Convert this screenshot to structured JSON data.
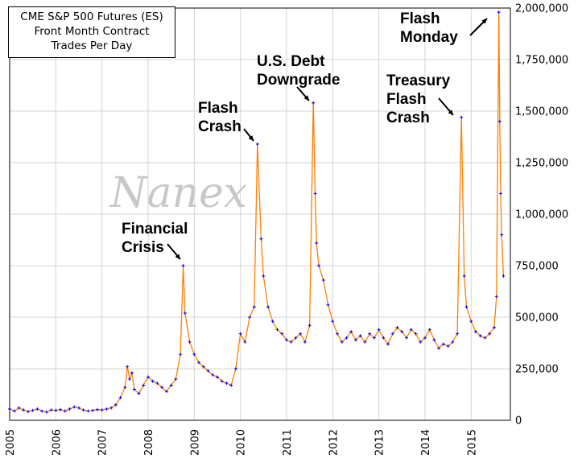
{
  "chart_data": {
    "type": "line",
    "title_lines": [
      "CME S&P 500 Futures (ES)",
      "Front Month Contract",
      "Trades Per Day"
    ],
    "watermark": "Nanex",
    "xlabel": "",
    "ylabel": "",
    "xlim": [
      2005.0,
      2015.85
    ],
    "ylim": [
      0,
      2000000
    ],
    "x_ticks": [
      "2005",
      "2006",
      "2007",
      "2008",
      "2009",
      "2010",
      "2011",
      "2012",
      "2013",
      "2014",
      "2015"
    ],
    "y_ticks": [
      "0",
      "250,000",
      "500,000",
      "750,000",
      "1,000,000",
      "1,250,000",
      "1,500,000",
      "1,750,000",
      "2,000,000"
    ],
    "grid": true,
    "line_color": "#ff7f00",
    "marker_color": "#0000ff",
    "series": [
      {
        "x": [
          2005.0,
          2005.1,
          2005.2,
          2005.3,
          2005.4,
          2005.5,
          2005.6,
          2005.7,
          2005.8,
          2005.9,
          2006.0,
          2006.1,
          2006.2,
          2006.3,
          2006.4,
          2006.5,
          2006.6,
          2006.7,
          2006.8,
          2006.9,
          2007.0,
          2007.1,
          2007.2,
          2007.3,
          2007.4,
          2007.5,
          2007.55,
          2007.6,
          2007.65,
          2007.7,
          2007.8,
          2007.9,
          2008.0,
          2008.1,
          2008.2,
          2008.3,
          2008.4,
          2008.5,
          2008.6,
          2008.7,
          2008.76,
          2008.8,
          2008.9,
          2009.0,
          2009.1,
          2009.2,
          2009.3,
          2009.4,
          2009.5,
          2009.6,
          2009.7,
          2009.8,
          2009.9,
          2010.0,
          2010.1,
          2010.2,
          2010.3,
          2010.37,
          2010.45,
          2010.5,
          2010.6,
          2010.7,
          2010.8,
          2010.9,
          2011.0,
          2011.1,
          2011.2,
          2011.3,
          2011.4,
          2011.5,
          2011.58,
          2011.62,
          2011.65,
          2011.7,
          2011.8,
          2011.9,
          2012.0,
          2012.1,
          2012.2,
          2012.3,
          2012.4,
          2012.5,
          2012.6,
          2012.7,
          2012.8,
          2012.9,
          2013.0,
          2013.1,
          2013.2,
          2013.3,
          2013.4,
          2013.5,
          2013.6,
          2013.7,
          2013.8,
          2013.9,
          2014.0,
          2014.1,
          2014.2,
          2014.3,
          2014.4,
          2014.5,
          2014.6,
          2014.7,
          2014.79,
          2014.85,
          2014.9,
          2015.0,
          2015.1,
          2015.2,
          2015.3,
          2015.4,
          2015.5,
          2015.55,
          2015.6,
          2015.62,
          2015.64,
          2015.66,
          2015.7
        ],
        "values": [
          55000,
          45000,
          60000,
          50000,
          42000,
          48000,
          55000,
          45000,
          40000,
          50000,
          48000,
          52000,
          45000,
          55000,
          65000,
          60000,
          50000,
          45000,
          48000,
          52000,
          50000,
          55000,
          60000,
          75000,
          110000,
          160000,
          260000,
          200000,
          230000,
          150000,
          130000,
          170000,
          210000,
          190000,
          180000,
          160000,
          140000,
          170000,
          200000,
          320000,
          750000,
          520000,
          380000,
          320000,
          280000,
          260000,
          240000,
          220000,
          210000,
          190000,
          180000,
          170000,
          250000,
          420000,
          380000,
          500000,
          550000,
          1340000,
          880000,
          700000,
          550000,
          480000,
          440000,
          420000,
          390000,
          380000,
          400000,
          420000,
          380000,
          460000,
          1540000,
          1100000,
          860000,
          750000,
          680000,
          560000,
          480000,
          420000,
          380000,
          400000,
          430000,
          390000,
          410000,
          380000,
          420000,
          400000,
          440000,
          400000,
          370000,
          420000,
          450000,
          430000,
          400000,
          440000,
          420000,
          380000,
          400000,
          440000,
          390000,
          350000,
          370000,
          360000,
          380000,
          420000,
          1470000,
          700000,
          550000,
          480000,
          430000,
          410000,
          400000,
          420000,
          450000,
          600000,
          1980000,
          1450000,
          1100000,
          900000,
          700000
        ]
      }
    ],
    "annotations": [
      {
        "text_lines": [
          "Financial",
          "Crisis"
        ],
        "x": 2008.76,
        "y": 750000
      },
      {
        "text_lines": [
          "Flash",
          "Crash"
        ],
        "x": 2010.37,
        "y": 1340000
      },
      {
        "text_lines": [
          "U.S. Debt",
          "Downgrade"
        ],
        "x": 2011.58,
        "y": 1540000
      },
      {
        "text_lines": [
          "Treasury",
          "Flash",
          "Crash"
        ],
        "x": 2014.79,
        "y": 1470000
      },
      {
        "text_lines": [
          "Flash",
          "Monday"
        ],
        "x": 2015.6,
        "y": 1980000
      }
    ]
  }
}
